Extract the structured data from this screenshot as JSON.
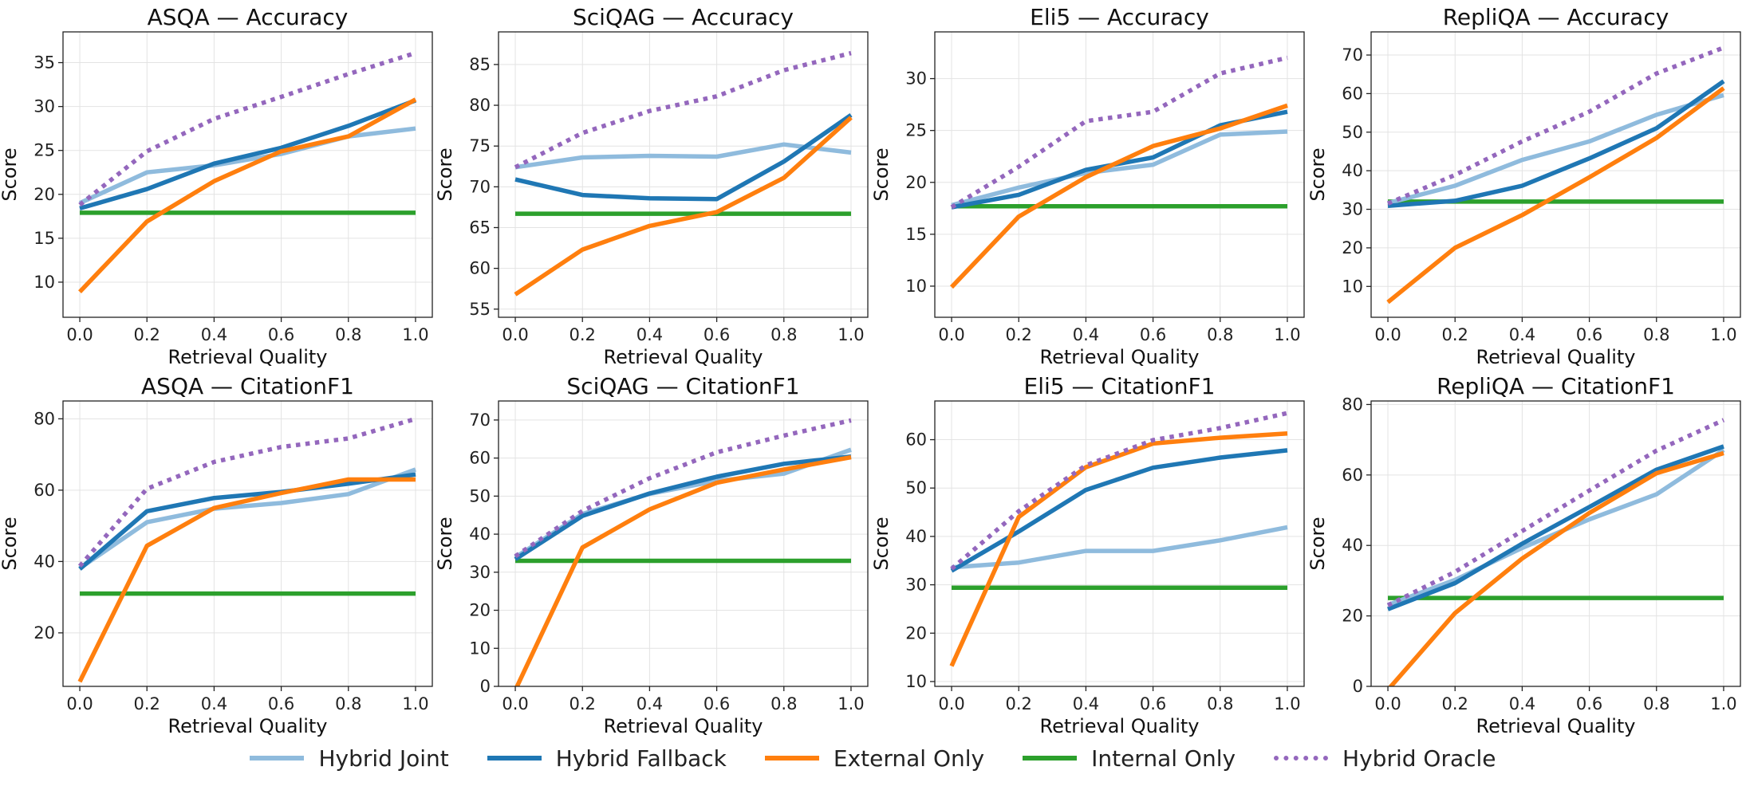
{
  "chart_data": [
    {
      "type": "line",
      "title": "ASQA — Accuracy",
      "xlabel": "Retrieval Quality",
      "ylabel": "Score",
      "x": [
        0.0,
        0.2,
        0.4,
        0.6,
        0.8,
        1.0
      ],
      "xticks": [
        "0.0",
        "0.2",
        "0.4",
        "0.6",
        "0.8",
        "1.0"
      ],
      "xlim": [
        -0.05,
        1.05
      ],
      "ylim": [
        6,
        38.5
      ],
      "yticks": [
        10,
        15,
        20,
        25,
        30,
        35
      ],
      "grid": true,
      "series": [
        {
          "name": "Hybrid Joint",
          "values": [
            19.0,
            22.5,
            23.3,
            24.6,
            26.6,
            27.5
          ]
        },
        {
          "name": "Hybrid Fallback",
          "values": [
            18.4,
            20.6,
            23.5,
            25.3,
            27.8,
            30.7
          ]
        },
        {
          "name": "External Only",
          "values": [
            8.9,
            16.9,
            21.5,
            24.9,
            26.6,
            30.8
          ]
        },
        {
          "name": "Internal Only",
          "values": [
            17.9,
            17.9,
            17.9,
            17.9,
            17.9,
            17.9
          ]
        },
        {
          "name": "Hybrid Oracle",
          "values": [
            18.8,
            24.9,
            28.6,
            31.1,
            33.7,
            36.1
          ]
        }
      ]
    },
    {
      "type": "line",
      "title": "SciQAG — Accuracy",
      "xlabel": "Retrieval Quality",
      "ylabel": "Score",
      "x": [
        0.0,
        0.2,
        0.4,
        0.6,
        0.8,
        1.0
      ],
      "xticks": [
        "0.0",
        "0.2",
        "0.4",
        "0.6",
        "0.8",
        "1.0"
      ],
      "xlim": [
        -0.05,
        1.05
      ],
      "ylim": [
        54,
        89
      ],
      "yticks": [
        55,
        60,
        65,
        70,
        75,
        80,
        85
      ],
      "grid": true,
      "series": [
        {
          "name": "Hybrid Joint",
          "values": [
            72.4,
            73.6,
            73.8,
            73.7,
            75.2,
            74.2
          ]
        },
        {
          "name": "Hybrid Fallback",
          "values": [
            70.9,
            69.0,
            68.6,
            68.5,
            73.1,
            78.8
          ]
        },
        {
          "name": "External Only",
          "values": [
            56.8,
            62.3,
            65.2,
            66.9,
            71.1,
            78.5
          ]
        },
        {
          "name": "Internal Only",
          "values": [
            66.7,
            66.7,
            66.7,
            66.7,
            66.7,
            66.7
          ]
        },
        {
          "name": "Hybrid Oracle",
          "values": [
            72.4,
            76.6,
            79.3,
            81.1,
            84.3,
            86.4
          ]
        }
      ]
    },
    {
      "type": "line",
      "title": "Eli5 — Accuracy",
      "xlabel": "Retrieval Quality",
      "ylabel": "Score",
      "x": [
        0.0,
        0.2,
        0.4,
        0.6,
        0.8,
        1.0
      ],
      "xticks": [
        "0.0",
        "0.2",
        "0.4",
        "0.6",
        "0.8",
        "1.0"
      ],
      "xlim": [
        -0.05,
        1.05
      ],
      "ylim": [
        7,
        34.5
      ],
      "yticks": [
        10,
        15,
        20,
        25,
        30
      ],
      "grid": true,
      "series": [
        {
          "name": "Hybrid Joint",
          "values": [
            17.8,
            19.5,
            20.9,
            21.7,
            24.6,
            24.9
          ]
        },
        {
          "name": "Hybrid Fallback",
          "values": [
            17.6,
            18.8,
            21.2,
            22.4,
            25.5,
            26.8
          ]
        },
        {
          "name": "External Only",
          "values": [
            9.9,
            16.7,
            20.5,
            23.5,
            25.2,
            27.4
          ]
        },
        {
          "name": "Internal Only",
          "values": [
            17.7,
            17.7,
            17.7,
            17.7,
            17.7,
            17.7
          ]
        },
        {
          "name": "Hybrid Oracle",
          "values": [
            17.6,
            21.5,
            25.9,
            26.8,
            30.5,
            32.0
          ]
        }
      ]
    },
    {
      "type": "line",
      "title": "RepliQA — Accuracy",
      "xlabel": "Retrieval Quality",
      "ylabel": "Score",
      "x": [
        0.0,
        0.2,
        0.4,
        0.6,
        0.8,
        1.0
      ],
      "xticks": [
        "0.0",
        "0.2",
        "0.4",
        "0.6",
        "0.8",
        "1.0"
      ],
      "xlim": [
        -0.05,
        1.05
      ],
      "ylim": [
        2,
        76
      ],
      "yticks": [
        10,
        20,
        30,
        40,
        50,
        60,
        70
      ],
      "grid": true,
      "series": [
        {
          "name": "Hybrid Joint",
          "values": [
            31.6,
            36.1,
            42.8,
            47.6,
            54.5,
            59.6
          ]
        },
        {
          "name": "Hybrid Fallback",
          "values": [
            30.9,
            32.2,
            36.1,
            43.2,
            51.0,
            63.2
          ]
        },
        {
          "name": "External Only",
          "values": [
            5.9,
            20.0,
            28.5,
            38.3,
            48.5,
            61.4
          ]
        },
        {
          "name": "Internal Only",
          "values": [
            32.0,
            32.0,
            32.0,
            32.0,
            32.0,
            32.0
          ]
        },
        {
          "name": "Hybrid Oracle",
          "values": [
            31.5,
            38.9,
            47.6,
            55.3,
            65.2,
            71.9
          ]
        }
      ]
    },
    {
      "type": "line",
      "title": "ASQA — CitationF1",
      "xlabel": "Retrieval Quality",
      "ylabel": "Score",
      "x": [
        0.0,
        0.2,
        0.4,
        0.6,
        0.8,
        1.0
      ],
      "xticks": [
        "0.0",
        "0.2",
        "0.4",
        "0.6",
        "0.8",
        "1.0"
      ],
      "xlim": [
        -0.05,
        1.05
      ],
      "ylim": [
        5,
        85
      ],
      "yticks": [
        20,
        40,
        60,
        80
      ],
      "grid": true,
      "series": [
        {
          "name": "Hybrid Joint",
          "values": [
            38.1,
            51.0,
            54.8,
            56.4,
            58.9,
            65.8
          ]
        },
        {
          "name": "Hybrid Fallback",
          "values": [
            37.9,
            54.1,
            57.8,
            59.5,
            61.8,
            64.4
          ]
        },
        {
          "name": "External Only",
          "values": [
            6.3,
            44.4,
            55.0,
            59.2,
            63.0,
            63.0
          ]
        },
        {
          "name": "Internal Only",
          "values": [
            31.0,
            31.0,
            31.0,
            31.0,
            31.0,
            31.0
          ]
        },
        {
          "name": "Hybrid Oracle",
          "values": [
            38.7,
            60.4,
            67.9,
            72.1,
            74.5,
            80.0
          ]
        }
      ]
    },
    {
      "type": "line",
      "title": "SciQAG — CitationF1",
      "xlabel": "Retrieval Quality",
      "ylabel": "Score",
      "x": [
        0.0,
        0.2,
        0.4,
        0.6,
        0.8,
        1.0
      ],
      "xticks": [
        "0.0",
        "0.2",
        "0.4",
        "0.6",
        "0.8",
        "1.0"
      ],
      "xlim": [
        -0.05,
        1.05
      ],
      "ylim": [
        0,
        75
      ],
      "yticks": [
        0,
        10,
        20,
        30,
        40,
        50,
        60,
        70
      ],
      "grid": true,
      "series": [
        {
          "name": "Hybrid Joint",
          "values": [
            33.9,
            45.3,
            50.6,
            54.0,
            55.9,
            62.2
          ]
        },
        {
          "name": "Hybrid Fallback",
          "values": [
            33.4,
            44.8,
            50.7,
            55.1,
            58.5,
            60.4
          ]
        },
        {
          "name": "External Only",
          "values": [
            -1.0,
            36.5,
            46.5,
            53.5,
            57.0,
            60.2
          ]
        },
        {
          "name": "Internal Only",
          "values": [
            33.0,
            33.0,
            33.0,
            33.0,
            33.0,
            33.0
          ]
        },
        {
          "name": "Hybrid Oracle",
          "values": [
            34.2,
            46.1,
            54.7,
            61.5,
            65.9,
            69.9
          ]
        }
      ]
    },
    {
      "type": "line",
      "title": "Eli5 — CitationF1",
      "xlabel": "Retrieval Quality",
      "ylabel": "Score",
      "x": [
        0.0,
        0.2,
        0.4,
        0.6,
        0.8,
        1.0
      ],
      "xticks": [
        "0.0",
        "0.2",
        "0.4",
        "0.6",
        "0.8",
        "1.0"
      ],
      "xlim": [
        -0.05,
        1.05
      ],
      "ylim": [
        9,
        68
      ],
      "yticks": [
        10,
        20,
        30,
        40,
        50,
        60
      ],
      "grid": true,
      "series": [
        {
          "name": "Hybrid Joint",
          "values": [
            33.6,
            34.6,
            37.0,
            37.0,
            39.2,
            41.9
          ]
        },
        {
          "name": "Hybrid Fallback",
          "values": [
            32.9,
            41.0,
            49.6,
            54.2,
            56.3,
            57.8
          ]
        },
        {
          "name": "External Only",
          "values": [
            13.2,
            44.0,
            54.3,
            59.2,
            60.4,
            61.3
          ]
        },
        {
          "name": "Internal Only",
          "values": [
            29.4,
            29.4,
            29.4,
            29.4,
            29.4,
            29.4
          ]
        },
        {
          "name": "Hybrid Oracle",
          "values": [
            33.3,
            45.2,
            54.7,
            59.9,
            62.4,
            65.5
          ]
        }
      ]
    },
    {
      "type": "line",
      "title": "RepliQA — CitationF1",
      "xlabel": "Retrieval Quality",
      "ylabel": "Score",
      "x": [
        0.0,
        0.2,
        0.4,
        0.6,
        0.8,
        1.0
      ],
      "xticks": [
        "0.0",
        "0.2",
        "0.4",
        "0.6",
        "0.8",
        "1.0"
      ],
      "xlim": [
        -0.05,
        1.05
      ],
      "ylim": [
        0,
        81
      ],
      "yticks": [
        0,
        20,
        40,
        60,
        80
      ],
      "grid": true,
      "series": [
        {
          "name": "Hybrid Joint",
          "values": [
            23.1,
            30.2,
            39.3,
            47.4,
            54.5,
            67.1
          ]
        },
        {
          "name": "Hybrid Fallback",
          "values": [
            21.9,
            29.3,
            40.5,
            50.9,
            61.5,
            68.1
          ]
        },
        {
          "name": "External Only",
          "values": [
            -1.0,
            20.8,
            36.3,
            49.2,
            60.5,
            66.2
          ]
        },
        {
          "name": "Internal Only",
          "values": [
            25.1,
            25.1,
            25.1,
            25.1,
            25.1,
            25.1
          ]
        },
        {
          "name": "Hybrid Oracle",
          "values": [
            23.0,
            32.5,
            44.1,
            55.6,
            66.9,
            75.6
          ]
        }
      ]
    }
  ],
  "legend": {
    "placement": "bottom-center",
    "items": [
      {
        "label": "Hybrid Joint",
        "color": "#8fbbdd",
        "style": "solid"
      },
      {
        "label": "Hybrid Fallback",
        "color": "#1f77b4",
        "style": "solid"
      },
      {
        "label": "External Only",
        "color": "#ff7f0e",
        "style": "solid"
      },
      {
        "label": "Internal Only",
        "color": "#2ca02c",
        "style": "solid"
      },
      {
        "label": "Hybrid Oracle",
        "color": "#9467bd",
        "style": "dotted"
      }
    ]
  }
}
